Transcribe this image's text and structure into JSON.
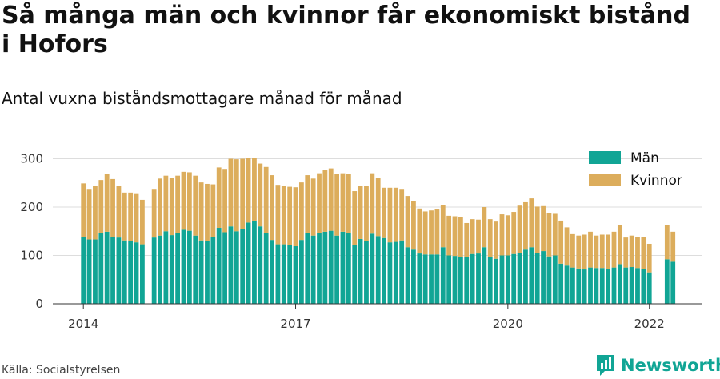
{
  "title": "Så många män och kvinnor får ekonomiskt bistånd i Hofors",
  "subtitle": "Antal vuxna biståndsmottagare månad för månad",
  "source": "Källa: Socialstyrelsen",
  "brand": "Newsworthy",
  "colors": {
    "man": "#11a595",
    "kvinnor": "#dcad5c",
    "brand": "#11a595"
  },
  "chart_data": {
    "type": "bar",
    "stacked": true,
    "x_start": "2014-01",
    "y_ticks": [
      0,
      100,
      200,
      300
    ],
    "ylim": [
      0,
      310
    ],
    "x_ticks": [
      {
        "label": "2014",
        "index": 0
      },
      {
        "label": "2017",
        "index": 36
      },
      {
        "label": "2020",
        "index": 72
      },
      {
        "label": "2022",
        "index": 96
      }
    ],
    "legend": {
      "position": "top-right"
    },
    "grid": true,
    "series": [
      {
        "name": "Män",
        "color": "#11a595",
        "values": [
          138,
          133,
          133,
          147,
          149,
          138,
          137,
          131,
          130,
          127,
          123,
          null,
          137,
          141,
          150,
          142,
          146,
          153,
          151,
          141,
          131,
          130,
          138,
          157,
          148,
          160,
          150,
          154,
          168,
          172,
          160,
          146,
          132,
          123,
          123,
          121,
          119,
          132,
          146,
          141,
          147,
          149,
          151,
          141,
          149,
          147,
          121,
          134,
          129,
          145,
          140,
          136,
          127,
          128,
          131,
          117,
          112,
          104,
          102,
          102,
          102,
          117,
          100,
          99,
          97,
          96,
          103,
          104,
          117,
          97,
          93,
          100,
          100,
          103,
          105,
          112,
          117,
          105,
          109,
          98,
          100,
          83,
          79,
          75,
          73,
          71,
          75,
          74,
          74,
          72,
          75,
          82,
          75,
          76,
          74,
          72,
          65,
          null,
          null,
          92,
          87
        ]
      },
      {
        "name": "Kvinnor",
        "color": "#dcad5c",
        "values": [
          111,
          103,
          111,
          109,
          119,
          120,
          107,
          99,
          100,
          100,
          92,
          null,
          99,
          118,
          115,
          119,
          119,
          120,
          121,
          124,
          120,
          118,
          109,
          125,
          131,
          140,
          149,
          146,
          134,
          130,
          130,
          137,
          134,
          123,
          121,
          121,
          122,
          119,
          120,
          118,
          123,
          127,
          129,
          127,
          121,
          121,
          112,
          110,
          115,
          125,
          120,
          104,
          113,
          112,
          105,
          106,
          101,
          93,
          89,
          91,
          93,
          87,
          82,
          82,
          82,
          71,
          72,
          70,
          83,
          78,
          77,
          85,
          83,
          87,
          98,
          98,
          101,
          96,
          93,
          89,
          86,
          89,
          79,
          69,
          68,
          72,
          74,
          67,
          69,
          71,
          74,
          80,
          62,
          65,
          64,
          66,
          59,
          null,
          null,
          70,
          62
        ]
      }
    ]
  }
}
